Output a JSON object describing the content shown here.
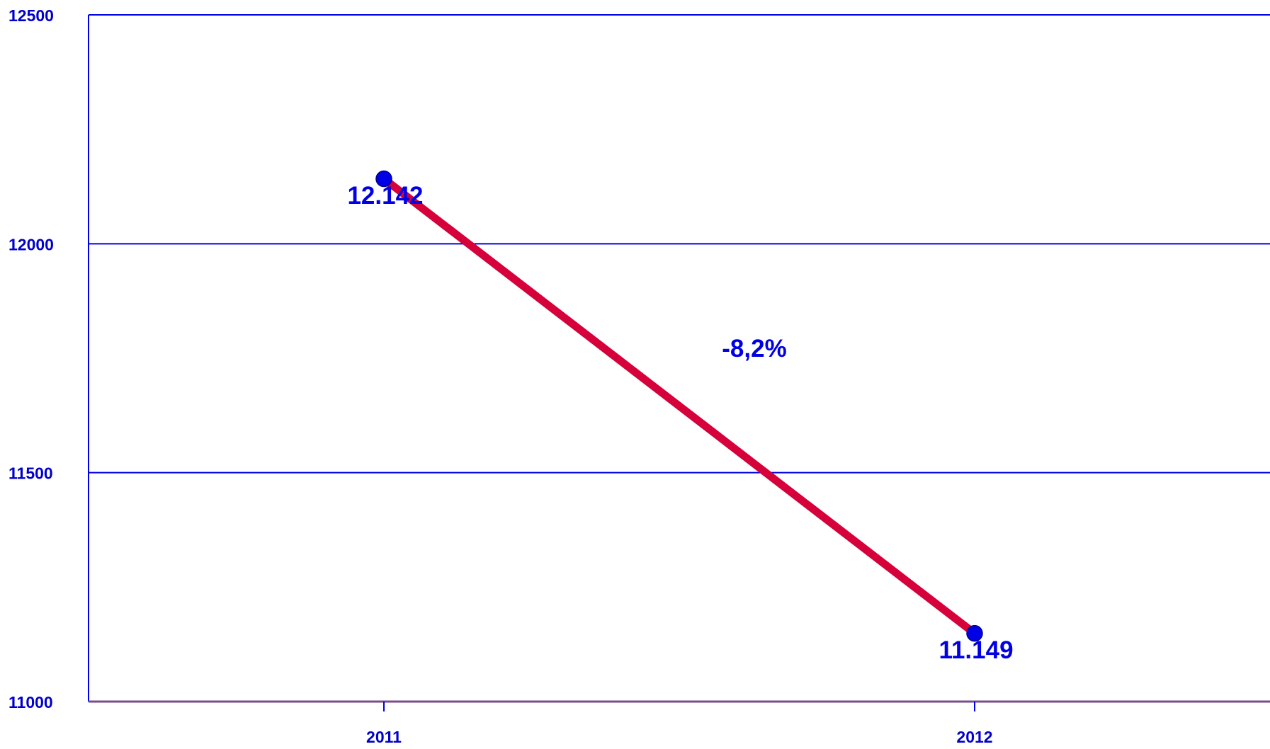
{
  "chart_data": {
    "type": "line",
    "categories": [
      "2011",
      "2012"
    ],
    "values": [
      12142,
      11149
    ],
    "value_labels": [
      "12.142",
      "11.149"
    ],
    "annotation": "-8,2%",
    "color": "#d6003a",
    "marker_color": "#0000e6",
    "ylim": [
      11000,
      12500
    ],
    "yticks": [
      11000,
      11500,
      12000,
      12500
    ],
    "grid": true
  }
}
